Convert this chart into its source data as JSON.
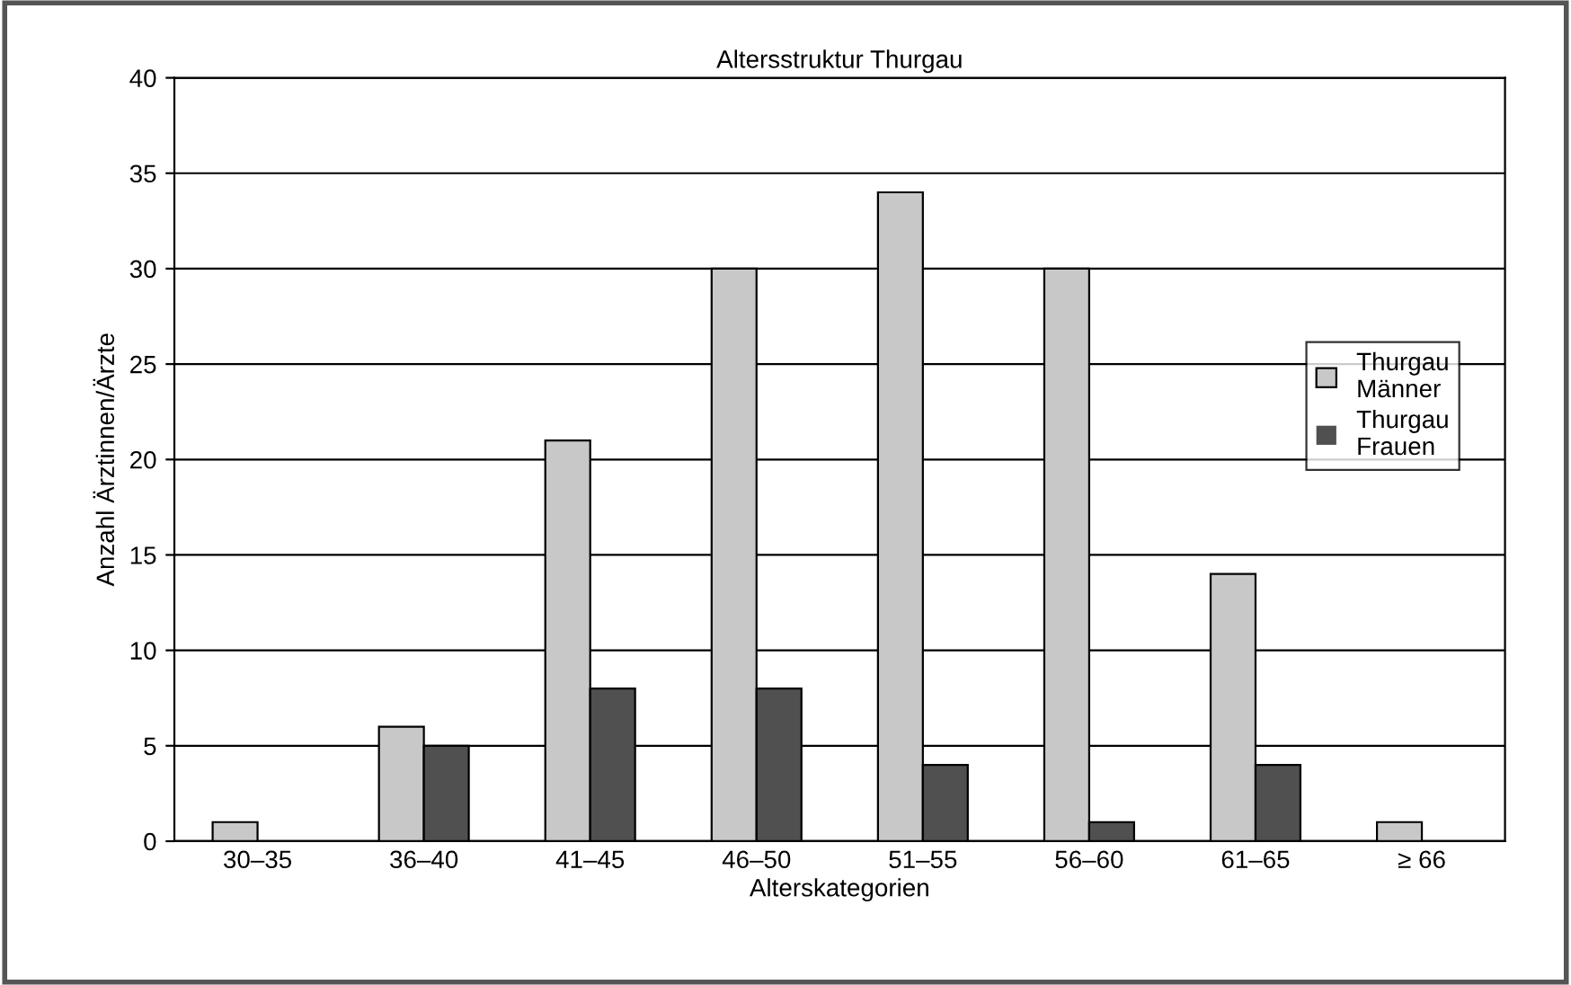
{
  "chart_data": {
    "type": "bar",
    "title": "Altersstruktur Thurgau",
    "xlabel": "Alterskategorien",
    "ylabel": "Anzahl Ärztinnen/Ärzte",
    "categories": [
      "30–35",
      "36–40",
      "41–45",
      "46–50",
      "51–55",
      "56–60",
      "61–65",
      "≥ 66"
    ],
    "series": [
      {
        "name": "Thurgau\nMänner",
        "color": "#c8c8c8",
        "values": [
          1,
          6,
          21,
          30,
          34,
          30,
          14,
          1
        ]
      },
      {
        "name": "Thurgau\nFrauen",
        "color": "#505050",
        "values": [
          0,
          5,
          8,
          8,
          4,
          1,
          4,
          0
        ]
      }
    ],
    "ylim": [
      0,
      40
    ],
    "yticks": [
      0,
      5,
      10,
      15,
      20,
      25,
      30,
      35,
      40
    ],
    "grid": "y",
    "legend": "right"
  }
}
